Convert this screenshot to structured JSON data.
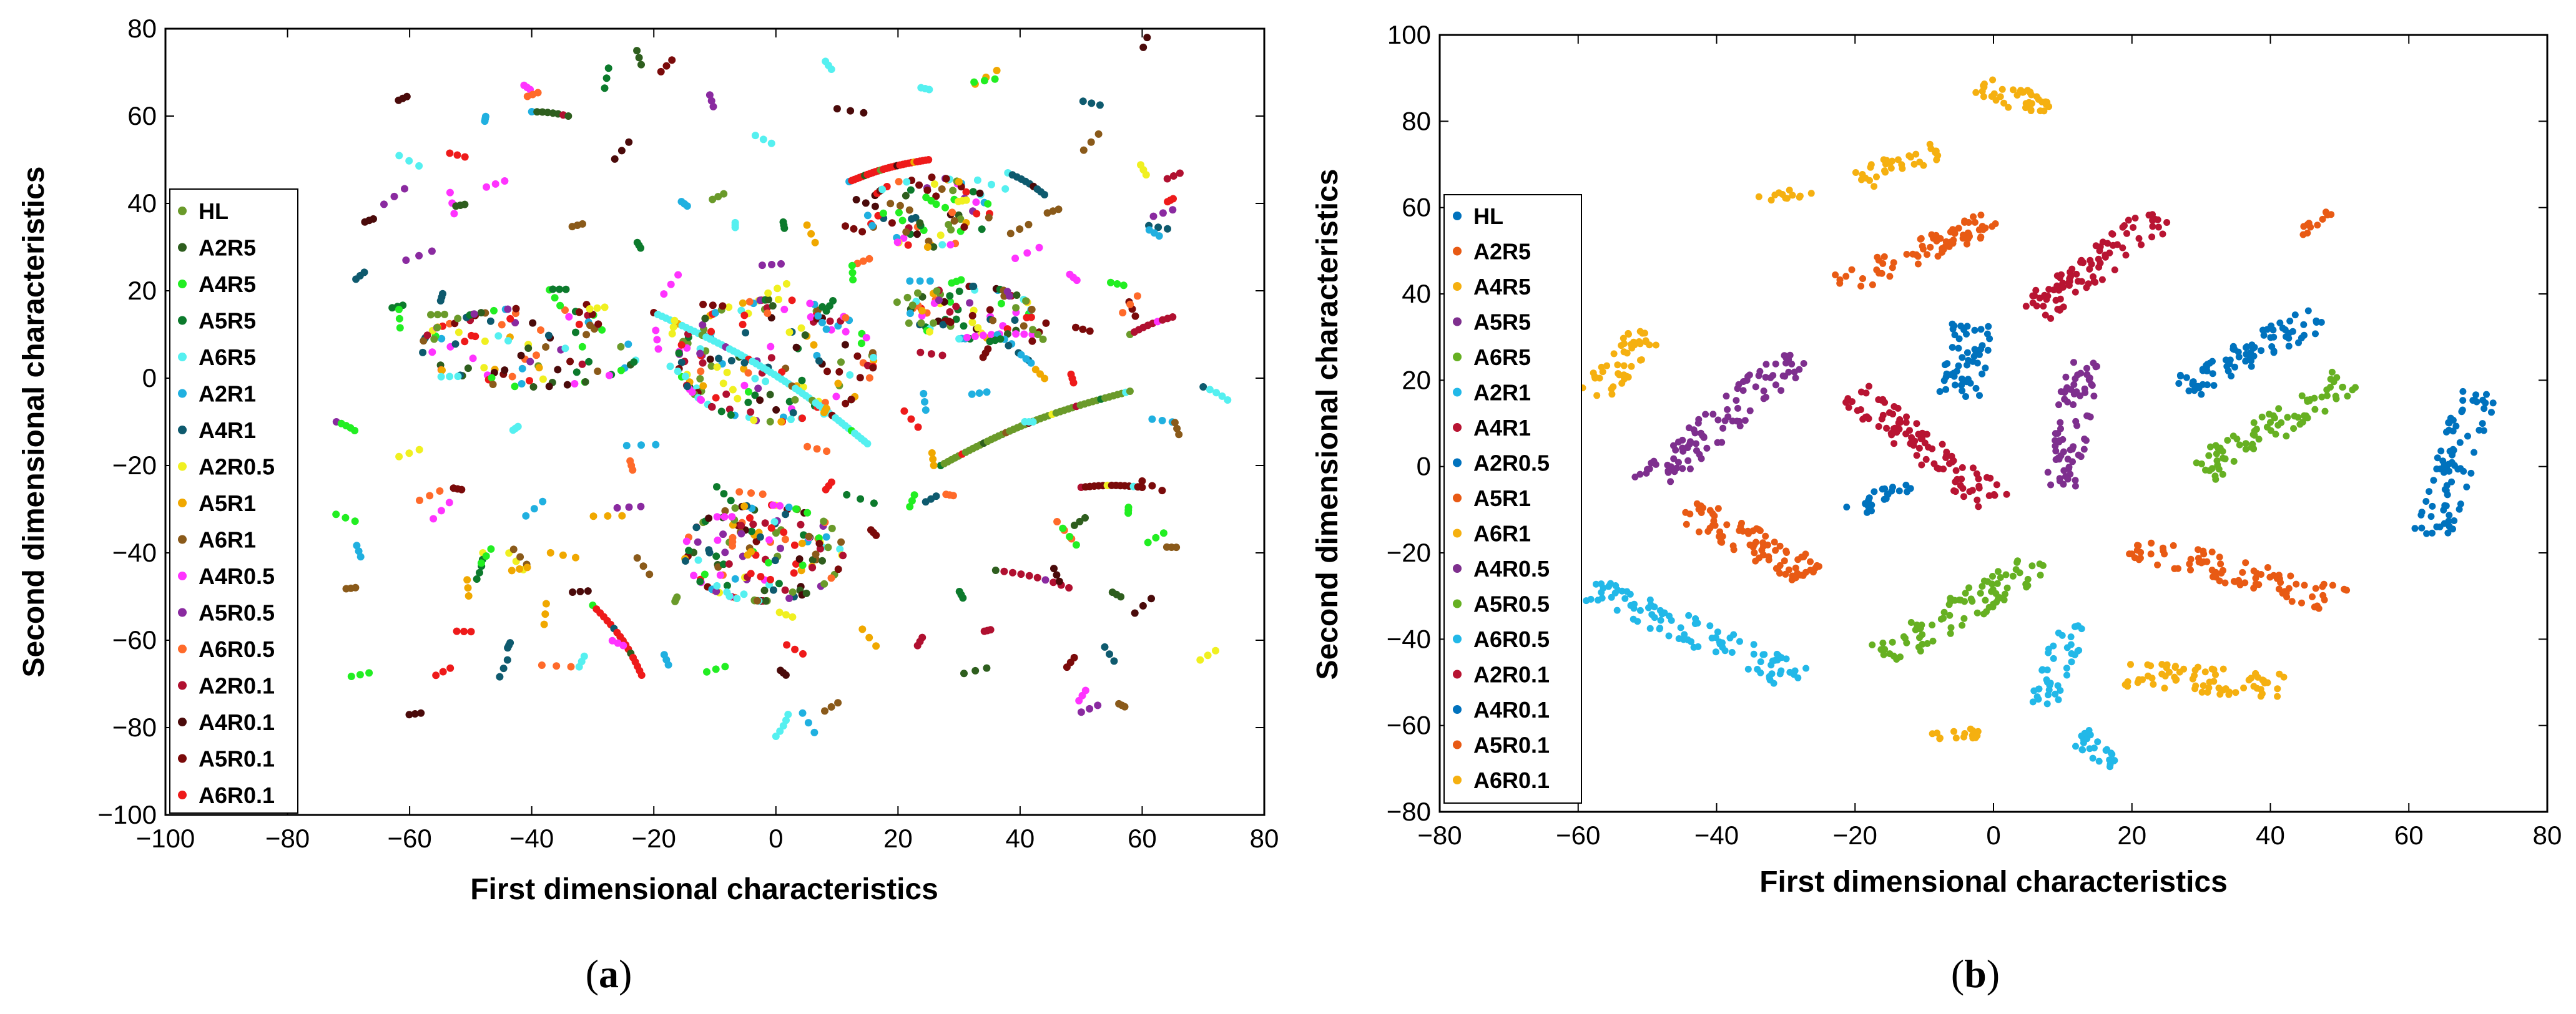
{
  "chart_data": [
    {
      "type": "scatter",
      "panel_label": "a",
      "xlabel": "First dimensional characteristics",
      "ylabel": "Second dimensional characteristics",
      "xlim": [
        -100,
        80
      ],
      "ylim": [
        -100,
        80
      ],
      "xticks": [
        -100,
        -80,
        -60,
        -40,
        -20,
        0,
        20,
        40,
        60,
        80
      ],
      "yticks": [
        -100,
        -80,
        -60,
        -40,
        -20,
        0,
        20,
        40,
        60,
        80
      ],
      "legend_position": "left",
      "series": [
        {
          "name": "HL",
          "color": "#6a9a2a"
        },
        {
          "name": "A2R5",
          "color": "#2e5e1e"
        },
        {
          "name": "A4R5",
          "color": "#22ee22"
        },
        {
          "name": "A5R5",
          "color": "#0c7a2c"
        },
        {
          "name": "A6R5",
          "color": "#55f0f0"
        },
        {
          "name": "A2R1",
          "color": "#20b0e0"
        },
        {
          "name": "A4R1",
          "color": "#0e5a6e"
        },
        {
          "name": "A2R0.5",
          "color": "#f0f020"
        },
        {
          "name": "A5R1",
          "color": "#f0a800"
        },
        {
          "name": "A6R1",
          "color": "#8a5a1a"
        },
        {
          "name": "A4R0.5",
          "color": "#ff33ff"
        },
        {
          "name": "A5R0.5",
          "color": "#8a2aa0"
        },
        {
          "name": "A6R0.5",
          "color": "#ff6a2a"
        },
        {
          "name": "A2R0.1",
          "color": "#b01030"
        },
        {
          "name": "A4R0.1",
          "color": "#4a0a0a"
        },
        {
          "name": "A5R0.1",
          "color": "#7a0a0a"
        },
        {
          "name": "A6R0.1",
          "color": "#ee1a1a"
        }
      ],
      "clusters": [
        {
          "type": "blob",
          "cx": -40,
          "cy": 7,
          "rx": 18,
          "ry": 9,
          "n": 80
        },
        {
          "type": "blob",
          "cx": 0,
          "cy": 4,
          "rx": 16,
          "ry": 14,
          "n": 130
        },
        {
          "type": "blob",
          "cx": -2,
          "cy": -40,
          "rx": 13,
          "ry": 11,
          "n": 110
        },
        {
          "type": "blob",
          "cx": 25,
          "cy": 38,
          "rx": 10,
          "ry": 8,
          "n": 60
        },
        {
          "type": "blob",
          "cx": 32,
          "cy": 15,
          "rx": 10,
          "ry": 6,
          "n": 60
        },
        {
          "type": "arc",
          "x1": -20,
          "y1": 15,
          "x2": 15,
          "y2": -15,
          "n": 60
        },
        {
          "type": "arc",
          "x1": 27,
          "y1": -20,
          "x2": 58,
          "y2": -3,
          "n": 50
        },
        {
          "type": "arc",
          "x1": 12,
          "y1": 45,
          "x2": 25,
          "y2": 50,
          "n": 30
        },
        {
          "type": "arc",
          "x1": 50,
          "y1": -25,
          "x2": 60,
          "y2": -25,
          "n": 15
        },
        {
          "type": "arc",
          "x1": -30,
          "y1": -52,
          "x2": -22,
          "y2": -68,
          "n": 18
        },
        {
          "type": "arc",
          "x1": 58,
          "y1": 10,
          "x2": 65,
          "y2": 14,
          "n": 10
        },
        {
          "type": "arc",
          "x1": -40,
          "y1": 61,
          "x2": -34,
          "y2": 60,
          "n": 8
        },
        {
          "type": "arc",
          "x1": 38,
          "y1": 47,
          "x2": 44,
          "y2": 42,
          "n": 10
        },
        {
          "type": "arc",
          "x1": 30,
          "y1": 9,
          "x2": 42,
          "y2": 10,
          "n": 10
        },
        {
          "type": "arc",
          "x1": 36,
          "y1": -44,
          "x2": 48,
          "y2": -48,
          "n": 10
        },
        {
          "type": "arc",
          "x1": -48,
          "y1": -40,
          "x2": -49,
          "y2": -46,
          "n": 5
        },
        {
          "type": "arc",
          "x1": 2,
          "y1": -77,
          "x2": 0,
          "y2": -82,
          "n": 5
        },
        {
          "type": "arc",
          "x1": -72,
          "y1": -10,
          "x2": -69,
          "y2": -12,
          "n": 5
        },
        {
          "type": "arc",
          "x1": 70,
          "y1": -2,
          "x2": 74,
          "y2": -5,
          "n": 5
        },
        {
          "type": "scatter",
          "xmin": -70,
          "xmax": 70,
          "ymin": -80,
          "ymax": 76,
          "n": 170
        }
      ]
    },
    {
      "type": "scatter",
      "panel_label": "b",
      "xlabel": "First dimensional characteristics",
      "ylabel": "Second dimensional characteristics",
      "xlim": [
        -80,
        80
      ],
      "ylim": [
        -80,
        100
      ],
      "xticks": [
        -80,
        -60,
        -40,
        -20,
        0,
        20,
        40,
        60,
        80
      ],
      "yticks": [
        -80,
        -60,
        -40,
        -20,
        0,
        20,
        40,
        60,
        80,
        100
      ],
      "legend_position": "left",
      "series": [
        {
          "name": "HL",
          "color": "#0072bd"
        },
        {
          "name": "A2R5",
          "color": "#e85a14"
        },
        {
          "name": "A4R5",
          "color": "#f5b010"
        },
        {
          "name": "A5R5",
          "color": "#7e2f8e"
        },
        {
          "name": "A6R5",
          "color": "#66b022"
        },
        {
          "name": "A2R1",
          "color": "#22b8e8"
        },
        {
          "name": "A4R1",
          "color": "#b81432"
        },
        {
          "name": "A2R0.5",
          "color": "#0072bd"
        },
        {
          "name": "A5R1",
          "color": "#e85a14"
        },
        {
          "name": "A6R1",
          "color": "#f5b010"
        },
        {
          "name": "A4R0.5",
          "color": "#7e2f8e"
        },
        {
          "name": "A5R0.5",
          "color": "#66b022"
        },
        {
          "name": "A6R0.5",
          "color": "#22b8e8"
        },
        {
          "name": "A2R0.1",
          "color": "#b81432"
        },
        {
          "name": "A4R0.1",
          "color": "#0072bd"
        },
        {
          "name": "A5R0.1",
          "color": "#e85a14"
        },
        {
          "name": "A6R0.1",
          "color": "#f5b010"
        }
      ],
      "clusters": [
        {
          "color": "#f5b010",
          "x1": -2,
          "y1": 88,
          "x2": 8,
          "y2": 83,
          "w": 2.5,
          "n": 40
        },
        {
          "color": "#f5b010",
          "x1": -20,
          "y1": 66,
          "x2": -8,
          "y2": 73,
          "w": 2.5,
          "n": 35
        },
        {
          "color": "#f5b010",
          "x1": -34,
          "y1": 62,
          "x2": -26,
          "y2": 64,
          "w": 1.5,
          "n": 12
        },
        {
          "color": "#e85a14",
          "x1": -22,
          "y1": 42,
          "x2": 0,
          "y2": 57,
          "w": 2.5,
          "n": 70
        },
        {
          "color": "#b81432",
          "x1": 6,
          "y1": 36,
          "x2": 24,
          "y2": 58,
          "w": 3,
          "n": 90
        },
        {
          "color": "#e85a14",
          "x1": 44,
          "y1": 53,
          "x2": 49,
          "y2": 60,
          "w": 1,
          "n": 12
        },
        {
          "color": "#f5b010",
          "x1": -58,
          "y1": 16,
          "x2": -50,
          "y2": 31,
          "w": 2.5,
          "n": 45
        },
        {
          "color": "#0072bd",
          "x1": -5,
          "y1": 16,
          "x2": -3,
          "y2": 33,
          "w": 3,
          "n": 55
        },
        {
          "color": "#0072bd",
          "x1": 27,
          "y1": 18,
          "x2": 47,
          "y2": 35,
          "w": 3,
          "n": 80
        },
        {
          "color": "#7e2f8e",
          "x1": -50,
          "y1": -4,
          "x2": -28,
          "y2": 26,
          "w": 3,
          "n": 95
        },
        {
          "color": "#b81432",
          "x1": -20,
          "y1": 17,
          "x2": 0,
          "y2": -8,
          "w": 3,
          "n": 95
        },
        {
          "color": "#7e2f8e",
          "x1": 10,
          "y1": -5,
          "x2": 13,
          "y2": 25,
          "w": 2.5,
          "n": 75
        },
        {
          "color": "#66b022",
          "x1": 30,
          "y1": -1,
          "x2": 51,
          "y2": 20,
          "w": 3,
          "n": 80
        },
        {
          "color": "#0072bd",
          "x1": 63,
          "y1": -16,
          "x2": 70,
          "y2": 18,
          "w": 3,
          "n": 80
        },
        {
          "color": "#0072bd",
          "x1": -21,
          "y1": -10,
          "x2": -12,
          "y2": -5,
          "w": 2,
          "n": 22
        },
        {
          "color": "#e85a14",
          "x1": -44,
          "y1": -10,
          "x2": -25,
          "y2": -26,
          "w": 3,
          "n": 85
        },
        {
          "color": "#e85a14",
          "x1": 20,
          "y1": -18,
          "x2": 50,
          "y2": -31,
          "w": 3,
          "n": 85
        },
        {
          "color": "#22b8e8",
          "x1": -58,
          "y1": -28,
          "x2": -27,
          "y2": -50,
          "w": 3,
          "n": 95
        },
        {
          "color": "#66b022",
          "x1": -16,
          "y1": -44,
          "x2": 7,
          "y2": -22,
          "w": 3,
          "n": 85
        },
        {
          "color": "#22b8e8",
          "x1": 7,
          "y1": -55,
          "x2": 12,
          "y2": -36,
          "w": 2.5,
          "n": 40
        },
        {
          "color": "#22b8e8",
          "x1": 12,
          "y1": -62,
          "x2": 18,
          "y2": -69,
          "w": 2,
          "n": 25
        },
        {
          "color": "#f5b010",
          "x1": 19,
          "y1": -48,
          "x2": 42,
          "y2": -51,
          "w": 3,
          "n": 70
        },
        {
          "color": "#f5b010",
          "x1": -10,
          "y1": -63,
          "x2": -2,
          "y2": -62,
          "w": 1.5,
          "n": 15
        }
      ]
    }
  ]
}
